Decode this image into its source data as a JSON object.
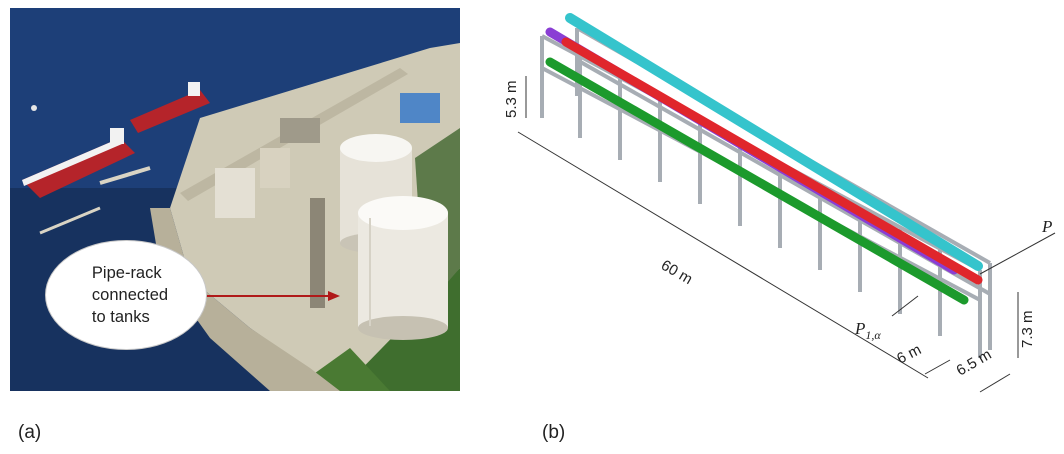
{
  "panel_a": {
    "label": "(a)",
    "callout_text": "Pipe-rack\nconnected\nto tanks",
    "colors": {
      "sea": "#1d3f78",
      "ship_hull": "#b5242a",
      "terminal": "#cfcab6",
      "tank": "#ece9e1",
      "arrow": "#b01919"
    }
  },
  "panel_b": {
    "label": "(b)",
    "dimensions": {
      "rack_length": "60 m",
      "level_height": "5.3 m",
      "total_height": "7.3 m",
      "bay_spacing": "6 m",
      "rack_width": "6.5 m"
    },
    "symbols": {
      "p_main": "P",
      "p_sub_base": "P",
      "p_sub_index": "1,α"
    },
    "pipe_colors": {
      "top_pipe": "#35c4cc",
      "upper_pipe": "#8a3ed4",
      "middle_pipe": "#e0262c",
      "lower_pipe": "#1c9a2c"
    },
    "frame_color": "#a7adb4"
  }
}
